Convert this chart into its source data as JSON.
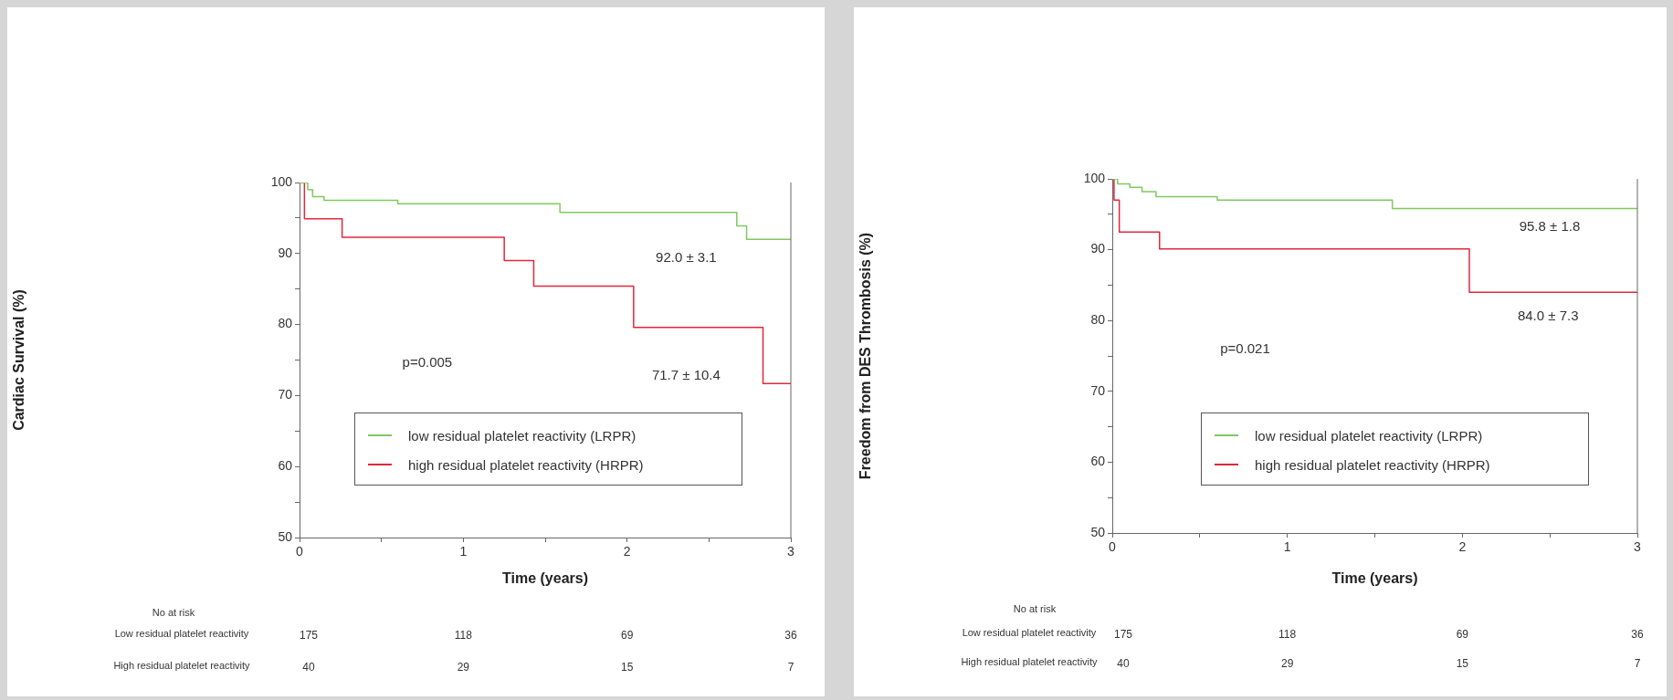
{
  "chart_data": [
    {
      "type": "step",
      "ylabel": "Cardiac Survival (%)",
      "xlabel": "Time (years)",
      "xlim": [
        0,
        3
      ],
      "xticks": [
        0,
        {
          "value": 0.5,
          "label": null
        },
        1,
        {
          "value": 1.5,
          "label": null
        },
        2,
        {
          "value": 2.5,
          "label": null
        },
        3
      ],
      "ylim": [
        50,
        100
      ],
      "yticks": [
        50,
        {
          "value": 55,
          "label": null
        },
        60,
        {
          "value": 65,
          "label": null
        },
        70,
        {
          "value": 75,
          "label": null
        },
        80,
        {
          "value": 85,
          "label": null
        },
        90,
        {
          "value": 95,
          "label": null
        },
        100
      ],
      "grid": false,
      "legend": "bottom",
      "marker": "none",
      "line_style": "solid",
      "series": [
        {
          "name": "low residual platelet reactivity (LRPR)",
          "color": "#80c860",
          "x": [
            0,
            0.05,
            0.08,
            0.15,
            0.6,
            1.59,
            2.67,
            2.73,
            3
          ],
          "values": [
            100,
            99,
            98,
            97.5,
            97,
            95.8,
            93.9,
            92.0,
            92.0
          ]
        },
        {
          "name": "high residual platelet reactivity (HRPR)",
          "color": "#e0283c",
          "x": [
            0,
            0.03,
            0.26,
            1.25,
            1.43,
            2.04,
            2.83,
            3
          ],
          "values": [
            100,
            94.9,
            92.3,
            89.0,
            85.4,
            79.6,
            71.7,
            71.7
          ]
        }
      ],
      "annotations": [
        "92.0 ± 3.1",
        "71.7 ± 10.4",
        "p=0.005",
        "No at risk",
        "Low residual platelet reactivity",
        "175",
        "118",
        "69",
        "36",
        "High residual platelet reactivity",
        "40",
        "29",
        "15",
        "7"
      ]
    },
    {
      "type": "step",
      "ylabel": "Freedom from DES Thrombosis (%)",
      "xlabel": "Time (years)",
      "xlim": [
        0,
        3
      ],
      "xticks": [
        0,
        {
          "value": 0.5,
          "label": null
        },
        1,
        {
          "value": 1.5,
          "label": null
        },
        2,
        {
          "value": 2.5,
          "label": null
        },
        3
      ],
      "ylim": [
        50,
        100
      ],
      "yticks": [
        50,
        {
          "value": 55,
          "label": null
        },
        60,
        {
          "value": 65,
          "label": null
        },
        70,
        {
          "value": 75,
          "label": null
        },
        80,
        {
          "value": 85,
          "label": null
        },
        90,
        {
          "value": 95,
          "label": null
        },
        100
      ],
      "grid": false,
      "legend": "bottom",
      "marker": "none",
      "line_style": "solid",
      "series": [
        {
          "name": "low residual platelet reactivity (LRPR)",
          "color": "#80c860",
          "x": [
            0,
            0.03,
            0.1,
            0.17,
            0.25,
            0.6,
            1.6,
            3
          ],
          "values": [
            100,
            99.3,
            98.8,
            98.2,
            97.5,
            97,
            95.8,
            95.8
          ]
        },
        {
          "name": "high residual platelet reactivity (HRPR)",
          "color": "#e0283c",
          "x": [
            0,
            0.01,
            0.04,
            0.27,
            2.04,
            3
          ],
          "values": [
            100,
            97,
            92.5,
            90.1,
            84.0,
            84.0
          ]
        }
      ],
      "annotations": [
        "95.8 ± 1.8",
        "84.0 ± 7.3",
        "p=0.021",
        "No at risk",
        "Low residual platelet reactivity",
        "175",
        "118",
        "69",
        "36",
        "High residual platelet reactivity",
        "40",
        "29",
        "15",
        "7"
      ]
    }
  ]
}
